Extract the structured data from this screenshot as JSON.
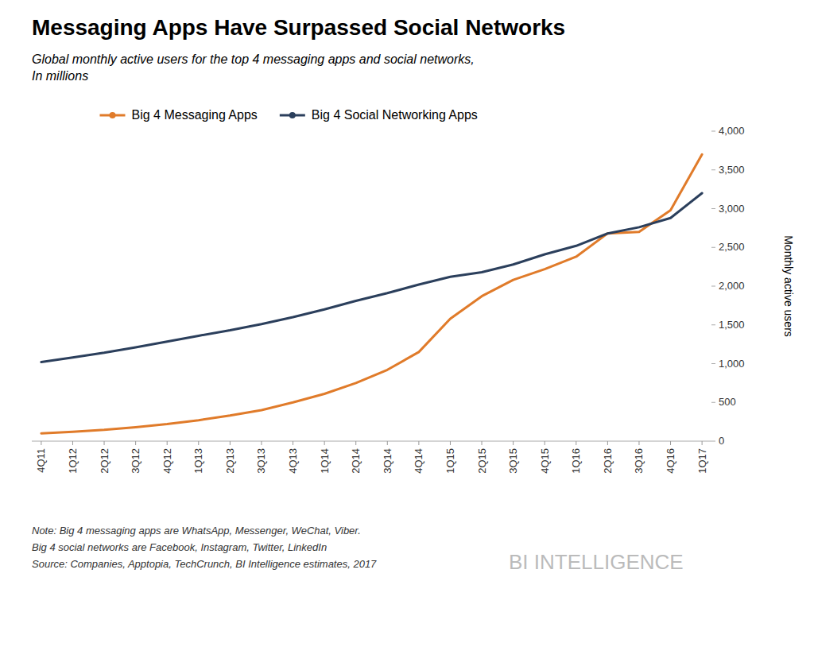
{
  "chart_data": {
    "type": "line",
    "title": "Messaging Apps Have Surpassed Social Networks",
    "subtitle": "Global monthly active users for the top 4 messaging apps and social networks,\nIn millions",
    "y_label": "Monthly active users",
    "categories": [
      "4Q11",
      "1Q12",
      "2Q12",
      "3Q12",
      "4Q12",
      "1Q13",
      "2Q13",
      "3Q13",
      "4Q13",
      "1Q14",
      "2Q14",
      "3Q14",
      "4Q14",
      "1Q15",
      "2Q15",
      "3Q15",
      "4Q15",
      "1Q16",
      "2Q16",
      "3Q16",
      "4Q16",
      "1Q17"
    ],
    "series": [
      {
        "name": "Big 4 Messaging Apps",
        "color": "#E07B2A",
        "values": [
          100,
          120,
          145,
          180,
          220,
          270,
          330,
          400,
          500,
          610,
          750,
          920,
          1150,
          1580,
          1870,
          2080,
          2220,
          2380,
          2680,
          2700,
          2980,
          3700
        ]
      },
      {
        "name": "Big 4 Social Networking Apps",
        "color": "#2B3F5C",
        "values": [
          1020,
          1080,
          1140,
          1210,
          1285,
          1360,
          1430,
          1510,
          1600,
          1700,
          1810,
          1910,
          2020,
          2120,
          2180,
          2280,
          2410,
          2520,
          2680,
          2760,
          2880,
          3200
        ]
      }
    ],
    "ylim": [
      0,
      4000
    ],
    "yticks": [
      0,
      500,
      {
        "value": 1000,
        "label": "1,000"
      },
      {
        "value": 1500,
        "label": "1,500"
      },
      {
        "value": 2000,
        "label": "2,000"
      },
      {
        "value": 2500,
        "label": "2,500"
      },
      {
        "value": 3000,
        "label": "3,000"
      },
      {
        "value": 3500,
        "label": "3,500"
      },
      {
        "value": 4000,
        "label": "4,000"
      }
    ],
    "grid": false,
    "legend": "top",
    "notes": [
      "Note: Big 4 messaging apps are WhatsApp, Messenger, WeChat, Viber.",
      "Big 4 social networks are Facebook, Instagram, Twitter, LinkedIn",
      "Source: Companies,  Apptopia, TechCrunch,  BI Intelligence estimates, 2017"
    ],
    "watermark": "BI INTELLIGENCE"
  }
}
